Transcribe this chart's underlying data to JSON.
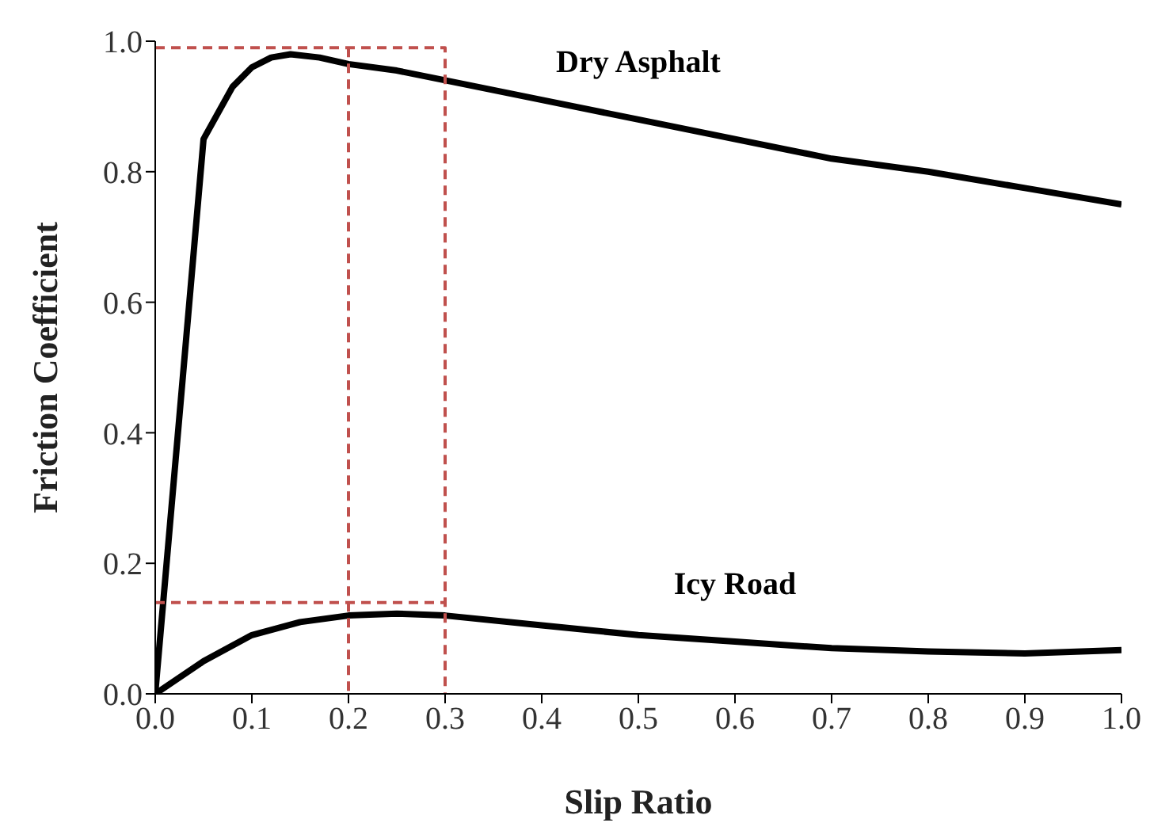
{
  "chart_data": {
    "type": "line",
    "xlabel": "Slip Ratio",
    "ylabel": "Friction Coefficient",
    "xlim": [
      0,
      1
    ],
    "ylim": [
      0,
      1
    ],
    "xticks": [
      {
        "value": 0,
        "label": "0.0"
      },
      0.1,
      0.2,
      0.3,
      0.4,
      0.5,
      0.6,
      0.7,
      0.8,
      0.9,
      {
        "value": 1,
        "label": "1.0"
      }
    ],
    "yticks": [
      {
        "value": 0,
        "label": "0.0"
      },
      0.2,
      0.4,
      0.6,
      0.8,
      {
        "value": 1,
        "label": "1.0"
      }
    ],
    "grid": false,
    "legend": false,
    "marker": "none",
    "series": [
      {
        "name": "Dry Asphalt",
        "color": "#000000",
        "line_style": "solid",
        "x": [
          0,
          0.05,
          0.08,
          0.1,
          0.12,
          0.14,
          0.17,
          0.2,
          0.25,
          0.3,
          0.4,
          0.5,
          0.6,
          0.7,
          0.8,
          0.9,
          1.0
        ],
        "values": [
          0,
          0.85,
          0.93,
          0.96,
          0.975,
          0.98,
          0.975,
          0.965,
          0.955,
          0.94,
          0.91,
          0.88,
          0.85,
          0.82,
          0.8,
          0.775,
          0.75
        ]
      },
      {
        "name": "Icy Road",
        "color": "#000000",
        "line_style": "solid",
        "x": [
          0,
          0.05,
          0.1,
          0.15,
          0.2,
          0.25,
          0.3,
          0.4,
          0.5,
          0.6,
          0.7,
          0.8,
          0.9,
          1.0
        ],
        "values": [
          0,
          0.05,
          0.09,
          0.11,
          0.12,
          0.123,
          0.12,
          0.105,
          0.09,
          0.08,
          0.07,
          0.065,
          0.062,
          0.067
        ]
      },
      {
        "color": "#c0504d",
        "line_style": "dashed",
        "x": [
          0,
          0.3,
          0.3
        ],
        "values": [
          0.99,
          0.99,
          0
        ]
      },
      {
        "color": "#c0504d",
        "line_style": "dashed",
        "x": [
          0.2,
          0.2
        ],
        "values": [
          0.99,
          0
        ]
      },
      {
        "color": "#c0504d",
        "line_style": "dashed",
        "x": [
          0,
          0.3
        ],
        "values": [
          0.14,
          0.14
        ]
      }
    ]
  }
}
